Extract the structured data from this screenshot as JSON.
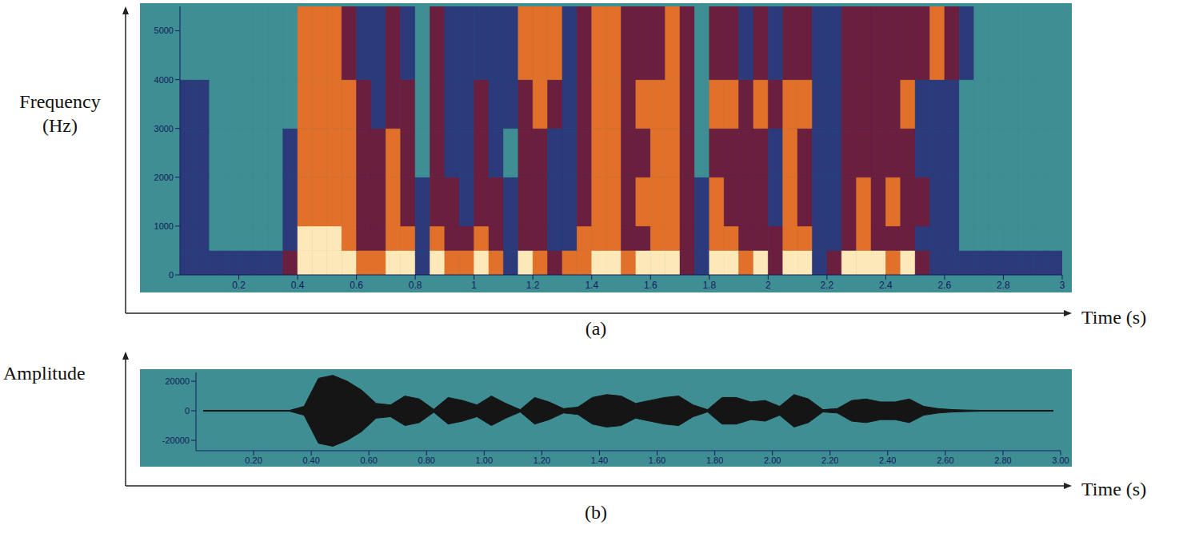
{
  "chart_data": [
    {
      "type": "heatmap",
      "title": "(a)",
      "x_label": "Time (s)",
      "y_label": "Frequency (Hz)",
      "xlim": [
        0,
        3
      ],
      "ylim": [
        0,
        5500
      ],
      "xticks": [
        0.2,
        0.4,
        0.6,
        0.8,
        1,
        1.2,
        1.4,
        1.6,
        1.8,
        2,
        2.2,
        2.4,
        2.6,
        2.8,
        3
      ],
      "yticks": [
        0,
        1000,
        2000,
        3000,
        4000,
        5000
      ],
      "x_bins": [
        0,
        0.05,
        0.1,
        0.15,
        0.2,
        0.25,
        0.3,
        0.35,
        0.4,
        0.45,
        0.5,
        0.55,
        0.6,
        0.65,
        0.7,
        0.75,
        0.8,
        0.85,
        0.9,
        0.95,
        1,
        1.05,
        1.1,
        1.15,
        1.2,
        1.25,
        1.3,
        1.35,
        1.4,
        1.45,
        1.5,
        1.55,
        1.6,
        1.65,
        1.7,
        1.75,
        1.8,
        1.85,
        1.9,
        1.95,
        2,
        2.05,
        2.1,
        2.15,
        2.2,
        2.25,
        2.3,
        2.35,
        2.4,
        2.45,
        2.5,
        2.55,
        2.6,
        2.65,
        2.7,
        2.75,
        2.8,
        2.85,
        2.9,
        2.95,
        3
      ],
      "y_bins": [
        0,
        500,
        1000,
        2000,
        3000,
        4000,
        5500
      ],
      "cells": [
        [
          1,
          1,
          1,
          1,
          1,
          0
        ],
        [
          1,
          1,
          1,
          1,
          1,
          0
        ],
        [
          1,
          0,
          0,
          0,
          0,
          0
        ],
        [
          1,
          0,
          0,
          0,
          0,
          0
        ],
        [
          1,
          0,
          0,
          0,
          0,
          0
        ],
        [
          1,
          0,
          0,
          0,
          0,
          0
        ],
        [
          1,
          0,
          0,
          0,
          0,
          0
        ],
        [
          2,
          1,
          1,
          1,
          0,
          0
        ],
        [
          4,
          4,
          3,
          3,
          3,
          3
        ],
        [
          4,
          4,
          3,
          3,
          3,
          3
        ],
        [
          4,
          4,
          3,
          3,
          3,
          3
        ],
        [
          4,
          3,
          3,
          3,
          3,
          2
        ],
        [
          3,
          2,
          2,
          2,
          2,
          1
        ],
        [
          3,
          2,
          2,
          2,
          1,
          1
        ],
        [
          4,
          3,
          3,
          3,
          2,
          2
        ],
        [
          4,
          3,
          2,
          2,
          2,
          1
        ],
        [
          1,
          1,
          1,
          0,
          0,
          0
        ],
        [
          4,
          3,
          2,
          2,
          2,
          2
        ],
        [
          3,
          2,
          2,
          1,
          1,
          1
        ],
        [
          3,
          2,
          1,
          1,
          1,
          1
        ],
        [
          4,
          3,
          2,
          2,
          2,
          1
        ],
        [
          3,
          2,
          2,
          1,
          1,
          1
        ],
        [
          1,
          1,
          1,
          0,
          1,
          1
        ],
        [
          4,
          2,
          2,
          2,
          2,
          3
        ],
        [
          3,
          2,
          2,
          2,
          3,
          3
        ],
        [
          2,
          1,
          1,
          1,
          2,
          3
        ],
        [
          3,
          1,
          1,
          1,
          1,
          1
        ],
        [
          3,
          3,
          2,
          2,
          2,
          2
        ],
        [
          4,
          3,
          3,
          3,
          3,
          3
        ],
        [
          4,
          3,
          3,
          3,
          3,
          3
        ],
        [
          3,
          2,
          2,
          2,
          2,
          2
        ],
        [
          4,
          2,
          3,
          2,
          3,
          2
        ],
        [
          4,
          3,
          3,
          3,
          3,
          2
        ],
        [
          4,
          3,
          3,
          3,
          3,
          3
        ],
        [
          2,
          2,
          2,
          2,
          2,
          2
        ],
        [
          1,
          1,
          1,
          0,
          0,
          0
        ],
        [
          4,
          3,
          3,
          2,
          3,
          2
        ],
        [
          4,
          3,
          2,
          2,
          3,
          2
        ],
        [
          3,
          2,
          2,
          2,
          2,
          1
        ],
        [
          4,
          2,
          2,
          2,
          3,
          2
        ],
        [
          2,
          2,
          1,
          1,
          2,
          1
        ],
        [
          4,
          3,
          3,
          3,
          3,
          2
        ],
        [
          4,
          3,
          2,
          2,
          3,
          2
        ],
        [
          1,
          1,
          1,
          1,
          1,
          1
        ],
        [
          2,
          1,
          1,
          1,
          1,
          1
        ],
        [
          4,
          2,
          2,
          2,
          2,
          2
        ],
        [
          4,
          3,
          3,
          2,
          2,
          2
        ],
        [
          4,
          2,
          2,
          2,
          2,
          2
        ],
        [
          3,
          2,
          3,
          2,
          2,
          2
        ],
        [
          4,
          2,
          2,
          2,
          3,
          2
        ],
        [
          2,
          1,
          2,
          1,
          1,
          2
        ],
        [
          1,
          1,
          1,
          1,
          1,
          3
        ],
        [
          1,
          1,
          1,
          1,
          1,
          2
        ],
        [
          1,
          0,
          0,
          0,
          0,
          1
        ],
        [
          1,
          0,
          0,
          0,
          0,
          0
        ],
        [
          1,
          0,
          0,
          0,
          0,
          0
        ],
        [
          1,
          0,
          0,
          0,
          0,
          0
        ],
        [
          1,
          0,
          0,
          0,
          0,
          0
        ],
        [
          1,
          0,
          0,
          0,
          0,
          0
        ],
        [
          1,
          0,
          0,
          0,
          0,
          0
        ]
      ],
      "colors": [
        "#3e8e93",
        "#2b3a7a",
        "#6b1f3f",
        "#e0702a",
        "#fde9b8"
      ]
    },
    {
      "type": "area",
      "title": "(b)",
      "x_label": "Time (s)",
      "y_label": "Amplitude",
      "color": "#151515",
      "xlim": [
        0,
        3
      ],
      "ylim": [
        -27000,
        26000
      ],
      "xticks": [
        {
          "value": 0.2,
          "label": "0.20"
        },
        {
          "value": 0.4,
          "label": "0.40"
        },
        {
          "value": 0.6,
          "label": "0.60"
        },
        {
          "value": 0.8,
          "label": "0.80"
        },
        {
          "value": 1,
          "label": "1.00"
        },
        {
          "value": 1.2,
          "label": "1.20"
        },
        {
          "value": 1.4,
          "label": "1.40"
        },
        {
          "value": 1.6,
          "label": "1.60"
        },
        {
          "value": 1.8,
          "label": "1.80"
        },
        {
          "value": 2,
          "label": "2.00"
        },
        {
          "value": 2.2,
          "label": "2.20"
        },
        {
          "value": 2.4,
          "label": "2.40"
        },
        {
          "value": 2.6,
          "label": "2.60"
        },
        {
          "value": 2.8,
          "label": "2.80"
        },
        {
          "value": 3,
          "label": "3.00"
        }
      ],
      "yticks": [
        -20000,
        0,
        20000
      ],
      "x": [
        0.025,
        0.075,
        0.125,
        0.175,
        0.225,
        0.275,
        0.325,
        0.375,
        0.425,
        0.475,
        0.525,
        0.575,
        0.625,
        0.675,
        0.725,
        0.775,
        0.825,
        0.875,
        0.925,
        0.975,
        1.025,
        1.075,
        1.125,
        1.175,
        1.225,
        1.275,
        1.325,
        1.375,
        1.425,
        1.475,
        1.525,
        1.575,
        1.625,
        1.675,
        1.725,
        1.775,
        1.825,
        1.875,
        1.925,
        1.975,
        2.025,
        2.075,
        2.125,
        2.175,
        2.225,
        2.275,
        2.325,
        2.375,
        2.425,
        2.475,
        2.525,
        2.575,
        2.625,
        2.675,
        2.725,
        2.775,
        2.825,
        2.875,
        2.925,
        2.975
      ],
      "values": [
        300,
        300,
        300,
        300,
        300,
        300,
        300,
        3000,
        22000,
        24000,
        20000,
        14000,
        5000,
        4000,
        10000,
        8000,
        1000,
        9000,
        7000,
        4000,
        10000,
        5000,
        800,
        9000,
        6000,
        1500,
        2500,
        9000,
        11000,
        10000,
        5000,
        7000,
        9000,
        10000,
        4000,
        800,
        9000,
        9000,
        6000,
        7000,
        3000,
        11000,
        8000,
        800,
        1500,
        7000,
        8000,
        6000,
        6000,
        8000,
        3000,
        1500,
        800,
        500,
        300,
        300,
        300,
        300,
        300,
        300
      ]
    }
  ]
}
